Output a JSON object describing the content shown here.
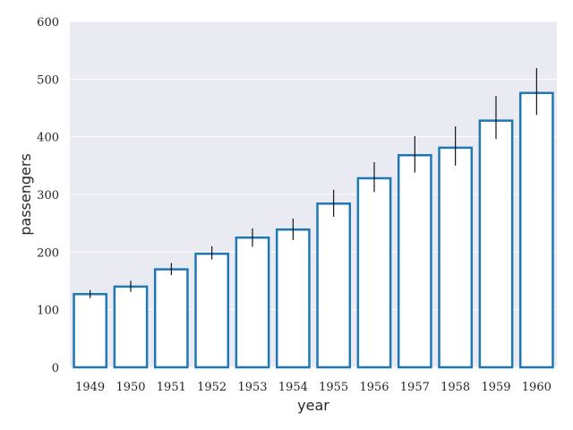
{
  "chart_data": {
    "type": "bar",
    "title": "",
    "xlabel": "year",
    "ylabel": "passengers",
    "categories": [
      "1949",
      "1950",
      "1951",
      "1952",
      "1953",
      "1954",
      "1955",
      "1956",
      "1957",
      "1958",
      "1959",
      "1960"
    ],
    "values": [
      127,
      140,
      170,
      197,
      225,
      239,
      284,
      328,
      368,
      381,
      428,
      476
    ],
    "error_bars": {
      "lower": [
        120,
        131,
        160,
        187,
        209,
        221,
        261,
        304,
        338,
        350,
        396,
        438
      ],
      "upper": [
        134,
        150,
        181,
        210,
        241,
        258,
        308,
        356,
        401,
        418,
        471,
        519
      ]
    },
    "ylim": [
      0,
      600
    ],
    "yticks": [
      0,
      100,
      200,
      300,
      400,
      500,
      600
    ],
    "grid": true,
    "legend": "none",
    "style": {
      "background": "#eaeaf2",
      "grid_color": "#ffffff",
      "bar_edge": "#1f77b4",
      "bar_fill": "#ffffff",
      "error_color": "#000000"
    }
  }
}
